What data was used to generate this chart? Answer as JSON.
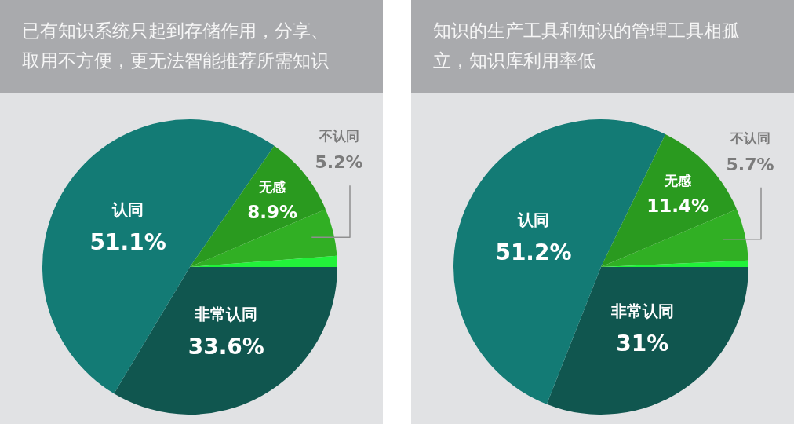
{
  "chart_data": [
    {
      "type": "pie",
      "title": "已有知识系统只起到存储作用，分享、取用不方便，更无法智能推荐所需知识",
      "categories": [
        "非常认同",
        "认同",
        "无感",
        "不认同",
        null
      ],
      "values": [
        33.6,
        51.1,
        8.9,
        5.2,
        1.2
      ],
      "value_labels": [
        "33.6%",
        "51.1%",
        "8.9%",
        "5.2%",
        null
      ],
      "colors": [
        "#10564f",
        "#137b75",
        "#2a9a1f",
        "#31af24",
        "#22f23a"
      ]
    },
    {
      "type": "pie",
      "title": "知识的生产工具和知识的管理工具相孤立，知识库利用率低",
      "categories": [
        "非常认同",
        "认同",
        "无感",
        "不认同",
        null
      ],
      "values": [
        31,
        51.2,
        11.4,
        5.7,
        0.7
      ],
      "value_labels": [
        "31%",
        "51.2%",
        "11.4%",
        "5.7%",
        null
      ],
      "colors": [
        "#10564f",
        "#137b75",
        "#2a9a1f",
        "#31af24",
        "#22f23a"
      ]
    }
  ]
}
